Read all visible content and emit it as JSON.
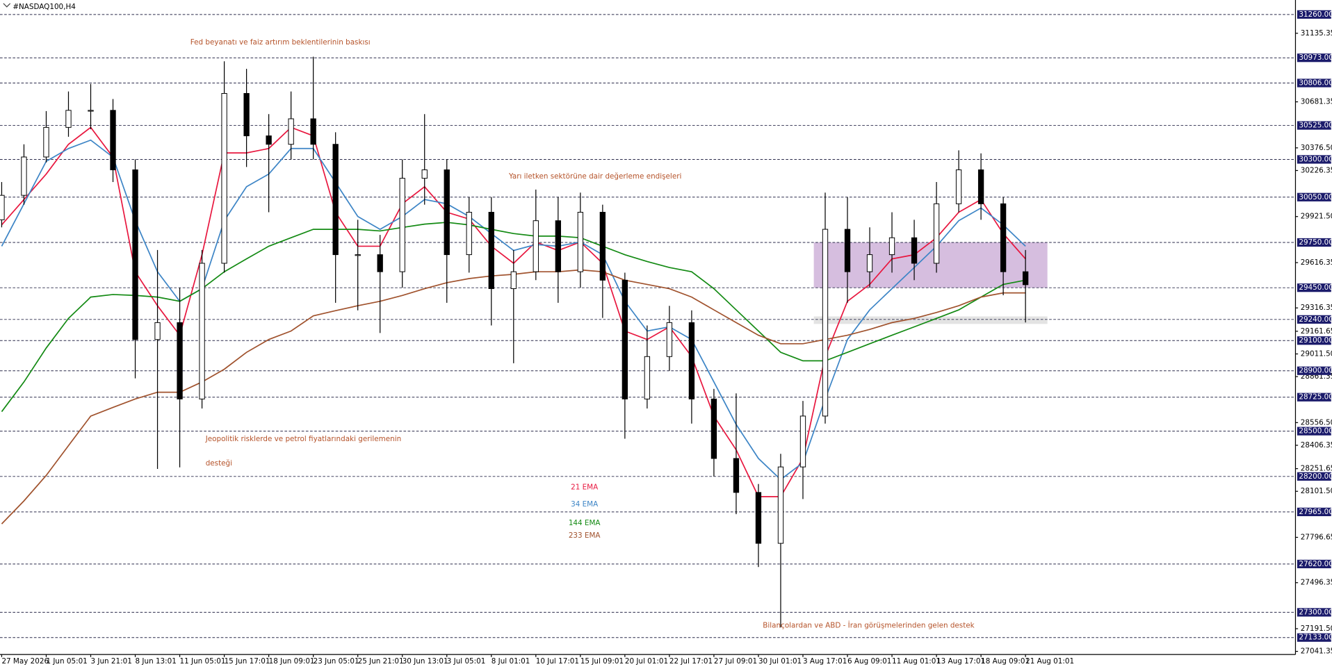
{
  "chart_data": {
    "type": "candlestick",
    "title": "#NASDAQ100,H4",
    "categories": [
      "27 May 2026",
      null,
      "1 Jun 05:01",
      null,
      "3 Jun 21:01",
      null,
      "8 Jun 13:01",
      null,
      "11 Jun 05:01",
      null,
      "15 Jun 17:01",
      null,
      "18 Jun 09:01",
      null,
      "23 Jun 05:01",
      null,
      "25 Jun 21:01",
      null,
      "30 Jun 13:01",
      null,
      "3 Jul 05:01",
      null,
      "8 Jul 01:01",
      null,
      "10 Jul 17:01",
      null,
      "15 Jul 09:01",
      null,
      "20 Jul 01:01",
      null,
      "22 Jul 17:01",
      null,
      "27 Jul 09:01",
      null,
      "30 Jul 01:01",
      null,
      "3 Aug 17:01",
      null,
      "6 Aug 09:01",
      null,
      "11 Aug 01:01",
      null,
      "13 Aug 17:01",
      null,
      "18 Aug 09:01",
      null,
      "21 Aug 01:01"
    ],
    "ohlc": {
      "open": [
        29900,
        30062,
        30316,
        30512,
        30625,
        30625,
        30231,
        29107,
        29219,
        28713,
        29612,
        30737,
        30456,
        30400,
        30569,
        30400,
        29669,
        29669,
        29556,
        30175,
        30231,
        29669,
        29950,
        29444,
        29556,
        29894,
        29556,
        29950,
        29500,
        28713,
        28994,
        29219,
        28713,
        28319,
        28094,
        27757,
        28263,
        28600,
        29837,
        29556,
        29669,
        29781,
        29612,
        30006,
        30231,
        30006,
        29556
      ],
      "high": [
        30150,
        30400,
        30620,
        30750,
        30800,
        30700,
        30300,
        29700,
        29450,
        29700,
        30950,
        30900,
        30600,
        30750,
        30980,
        30480,
        29900,
        29800,
        30300,
        30600,
        30300,
        30050,
        30050,
        29700,
        30100,
        30050,
        30080,
        30000,
        29550,
        29200,
        29330,
        29300,
        28780,
        28750,
        28150,
        28350,
        28700,
        30080,
        30050,
        29850,
        29950,
        29900,
        30150,
        30360,
        30340,
        30050,
        29700
      ],
      "low": [
        29850,
        30000,
        30280,
        30450,
        30500,
        30150,
        28850,
        28250,
        28260,
        28650,
        29550,
        30250,
        29950,
        30300,
        30300,
        29350,
        29300,
        29150,
        29450,
        30000,
        29350,
        29550,
        29200,
        28950,
        29500,
        29350,
        29450,
        29250,
        28450,
        28650,
        28900,
        28550,
        28200,
        27950,
        27600,
        27200,
        28050,
        28550,
        29350,
        29450,
        29550,
        29500,
        29550,
        29950,
        29900,
        29400,
        29220
      ],
      "close": [
        30062,
        30316,
        30512,
        30625,
        30625,
        30231,
        29107,
        29219,
        28713,
        29612,
        30737,
        30456,
        30400,
        30569,
        30400,
        29669,
        29669,
        29556,
        30175,
        30231,
        29669,
        29950,
        29444,
        29556,
        29894,
        29556,
        29950,
        29500,
        28713,
        28994,
        29219,
        28713,
        28319,
        28094,
        27757,
        28263,
        28600,
        29837,
        29556,
        29669,
        29781,
        29612,
        30006,
        30231,
        30006,
        29556,
        29470
      ]
    },
    "candle_color": "#000000",
    "series": [
      {
        "name": "21 EMA",
        "color": "#e8173f",
        "values": [
          29866,
          30034,
          30203,
          30400,
          30512,
          30315,
          29556,
          29331,
          29135,
          29669,
          30343,
          30343,
          30372,
          30512,
          30456,
          29950,
          29725,
          29725,
          30006,
          30119,
          29950,
          29905,
          29725,
          29612,
          29753,
          29697,
          29753,
          29612,
          29163,
          29107,
          29191,
          28994,
          28600,
          28376,
          28066,
          28066,
          28319,
          28994,
          29360,
          29472,
          29641,
          29669,
          29781,
          29950,
          30034,
          29809,
          29641
        ]
      },
      {
        "name": "34 EMA",
        "color": "#3d85c6",
        "values": [
          29725,
          30006,
          30287,
          30372,
          30428,
          30315,
          29894,
          29556,
          29360,
          29444,
          29894,
          30119,
          30203,
          30372,
          30372,
          30147,
          29922,
          29837,
          29922,
          30034,
          30006,
          29922,
          29809,
          29697,
          29736,
          29725,
          29753,
          29669,
          29360,
          29163,
          29191,
          29107,
          28826,
          28544,
          28319,
          28179,
          28291,
          28713,
          29107,
          29303,
          29444,
          29584,
          29725,
          29894,
          29978,
          29866,
          29725
        ]
      },
      {
        "name": "144 EMA",
        "color": "#138a13",
        "values": [
          28629,
          28826,
          29051,
          29247,
          29388,
          29405,
          29399,
          29388,
          29360,
          29444,
          29556,
          29641,
          29725,
          29781,
          29837,
          29837,
          29837,
          29826,
          29849,
          29871,
          29883,
          29866,
          29837,
          29809,
          29792,
          29792,
          29781,
          29725,
          29669,
          29624,
          29584,
          29556,
          29444,
          29303,
          29163,
          29022,
          28966,
          28966,
          29022,
          29079,
          29135,
          29191,
          29247,
          29303,
          29388,
          29472,
          29500
        ]
      },
      {
        "name": "233 EMA",
        "color": "#a0522d",
        "values": [
          27886,
          28038,
          28207,
          28404,
          28600,
          28657,
          28713,
          28758,
          28758,
          28826,
          28910,
          29022,
          29107,
          29163,
          29264,
          29298,
          29331,
          29360,
          29399,
          29444,
          29483,
          29511,
          29528,
          29539,
          29556,
          29556,
          29568,
          29556,
          29500,
          29472,
          29444,
          29388,
          29303,
          29219,
          29135,
          29079,
          29079,
          29107,
          29135,
          29174,
          29219,
          29247,
          29286,
          29331,
          29388,
          29416,
          29416
        ]
      }
    ],
    "ylim": [
      27020.4,
      31355.6
    ],
    "yticks": [
      31135.35,
      30681.35,
      {
        "value": 30376.5,
        "label": "30376.50"
      },
      30226.35,
      {
        "value": 29921.5,
        "label": "29921.50"
      },
      29616.35,
      29316.35,
      29161.65,
      {
        "value": 29011.5,
        "label": "29011.50"
      },
      28861.35,
      {
        "value": 28556.5,
        "label": "28556.50"
      },
      28406.35,
      28251.65,
      {
        "value": 28101.5,
        "label": "28101.50"
      },
      27796.65,
      27496.35,
      {
        "value": 27191.5,
        "label": "27191.50"
      },
      27041.35
    ],
    "levels": [
      {
        "value": 31260,
        "label": "31260.00"
      },
      {
        "value": 30973,
        "label": "30973.00"
      },
      {
        "value": 30806,
        "label": "30806.00"
      },
      {
        "value": 30525,
        "label": "30525.00"
      },
      {
        "value": 30300,
        "label": "30300.00"
      },
      {
        "value": 30050,
        "label": "30050.00"
      },
      {
        "value": 29750,
        "label": "29750.00"
      },
      {
        "value": 29450,
        "label": "29450.00"
      },
      {
        "value": 29240,
        "label": "29240.00"
      },
      {
        "value": 29100,
        "label": "29100.00"
      },
      {
        "value": 28900,
        "label": "28900.00"
      },
      {
        "value": 28725,
        "label": "28725.00"
      },
      {
        "value": 28500,
        "label": "28500.00"
      },
      {
        "value": 28200,
        "label": "28200.00"
      },
      {
        "value": 27965,
        "label": "27965.00"
      },
      {
        "value": 27620,
        "label": "27620.00"
      },
      {
        "value": 27300,
        "label": "27300.00"
      },
      {
        "value": 27133,
        "label": "27133.00"
      }
    ],
    "level_color": "#1b1b6b",
    "zones": [
      {
        "from": 29450,
        "to": 29750,
        "color": "#c8a8d4"
      },
      {
        "from": 29210,
        "to": 29260,
        "color": "#d9d9d9"
      }
    ],
    "annotations": [
      "Fed beyanatı ve faiz artırım beklentilerinin baskısı",
      "Yarı iletken sektörüne dair değerleme endişeleri",
      "Jeopolitik risklerde ve petrol fiyatlarındaki gerilemenin",
      "desteği",
      "Bilançolardan ve ABD - İran görüşmelerinden gelen destek"
    ],
    "annotation_color": "#b5532a"
  }
}
